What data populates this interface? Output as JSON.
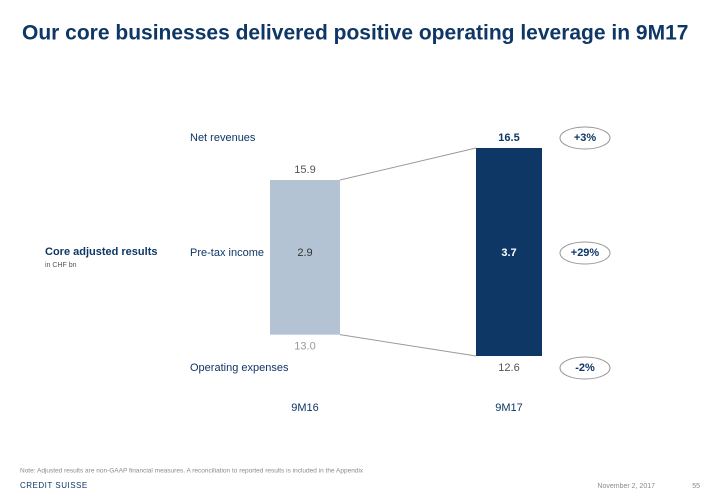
{
  "chart_data": {
    "type": "bar",
    "title": "Our core businesses delivered positive operating leverage in 9M17",
    "subtitle": "Core adjusted results",
    "unit": "in CHF bn",
    "categories": [
      "9M16",
      "9M17"
    ],
    "colors": [
      "#b3c3d3",
      "#0e3766"
    ],
    "series": [
      {
        "name": "Net revenues",
        "values": [
          15.9,
          16.5
        ],
        "change": "+3%"
      },
      {
        "name": "Pre-tax income",
        "values": [
          2.9,
          3.7
        ],
        "change": "+29%"
      },
      {
        "name": "Operating expenses",
        "values": [
          13.0,
          12.6
        ],
        "value_labels": [
          "13.0",
          "12.6"
        ],
        "change": "-2%"
      }
    ],
    "note": "Note: Adjusted results are non-GAAP financial measures. A reconciliation to reported results is included in the Appendix",
    "logo": "CREDIT SUISSE",
    "date": "November 2, 2017",
    "page": "55"
  }
}
